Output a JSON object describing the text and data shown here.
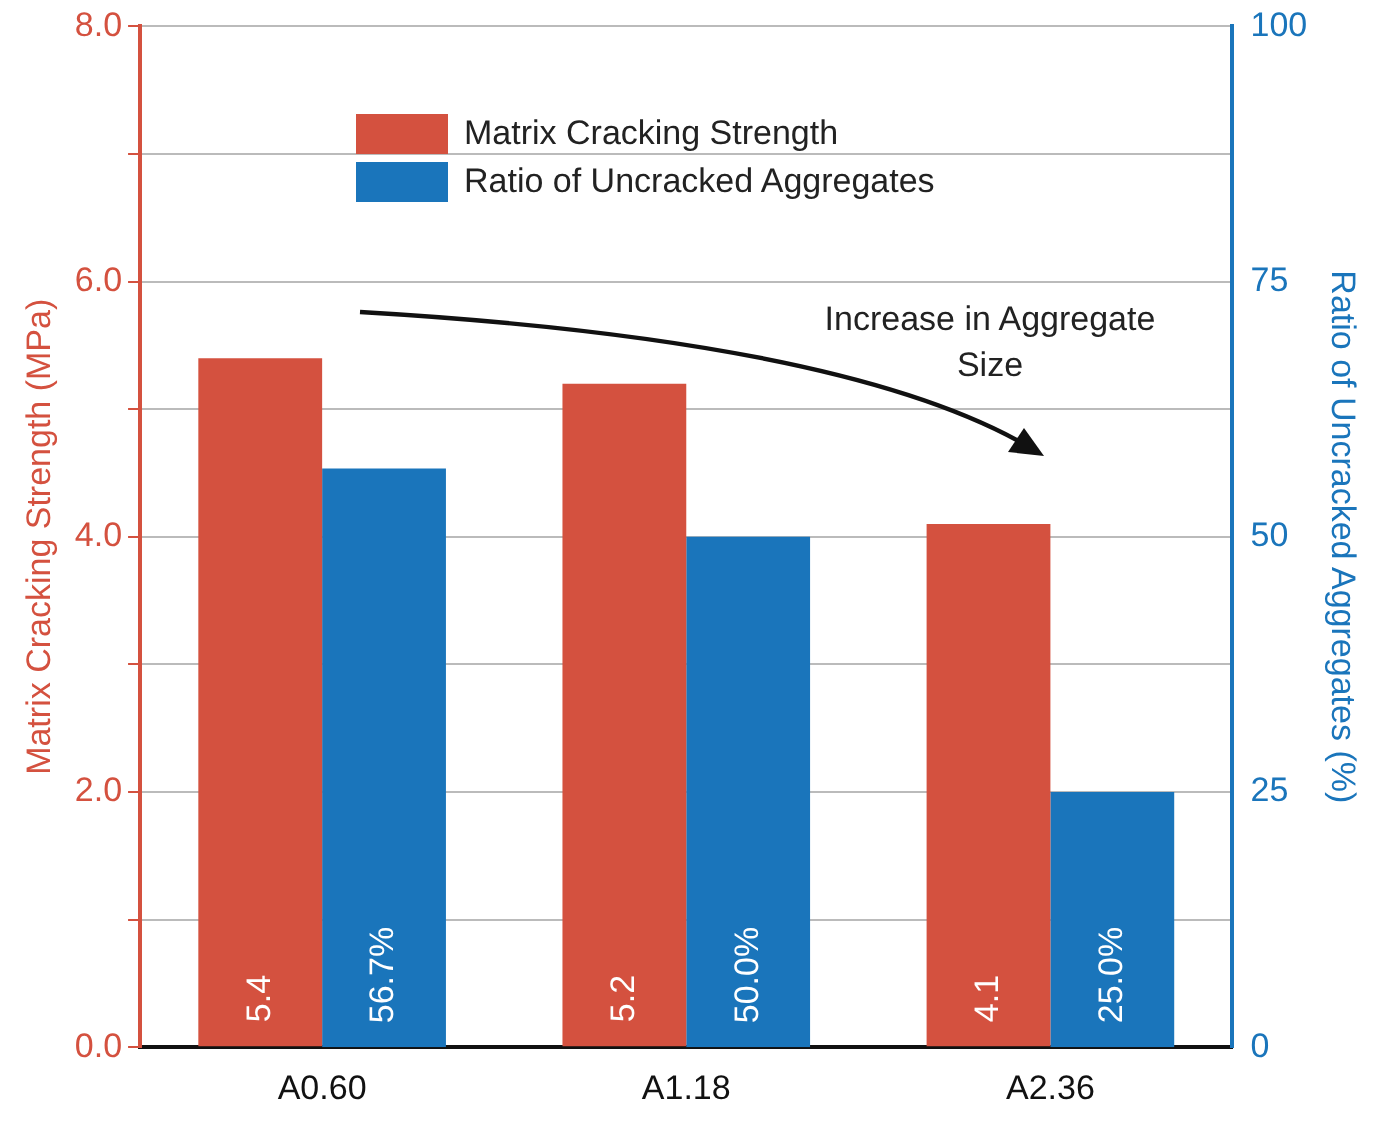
{
  "chart_data": {
    "type": "bar",
    "categories": [
      "A0.60",
      "A1.18",
      "A2.36"
    ],
    "series": [
      {
        "name": "Matrix Cracking Strength",
        "color": "#d4513f",
        "values": [
          5.4,
          5.2,
          4.1
        ],
        "value_labels": [
          "5.4",
          "5.2",
          "4.1"
        ]
      },
      {
        "name": "Ratio of Uncracked Aggregates",
        "color": "#1a75bb",
        "values": [
          56.7,
          50.0,
          25.0
        ],
        "value_labels": [
          "56.7%",
          "50.0%",
          "25.0%"
        ],
        "axis": "y2"
      }
    ],
    "ylabel": "Matrix Cracking Strength (MPa)",
    "y2label": "Ratio of Uncracked Aggregates (%)",
    "ylim": [
      0,
      8
    ],
    "yticks": [
      {
        "value": 0,
        "label": "0.0"
      },
      {
        "value": 1,
        "label": null
      },
      {
        "value": 2,
        "label": "2.0"
      },
      {
        "value": 3,
        "label": null
      },
      {
        "value": 4,
        "label": "4.0"
      },
      {
        "value": 5,
        "label": null
      },
      {
        "value": 6,
        "label": "6.0"
      },
      {
        "value": 7,
        "label": null
      },
      {
        "value": 8,
        "label": "8.0"
      }
    ],
    "y2lim": [
      0,
      100
    ],
    "y2ticks": [
      0,
      25,
      50,
      75,
      100
    ],
    "grid": "y",
    "legend": "top left",
    "annotations": [
      "Increase in Aggregate Size"
    ]
  }
}
